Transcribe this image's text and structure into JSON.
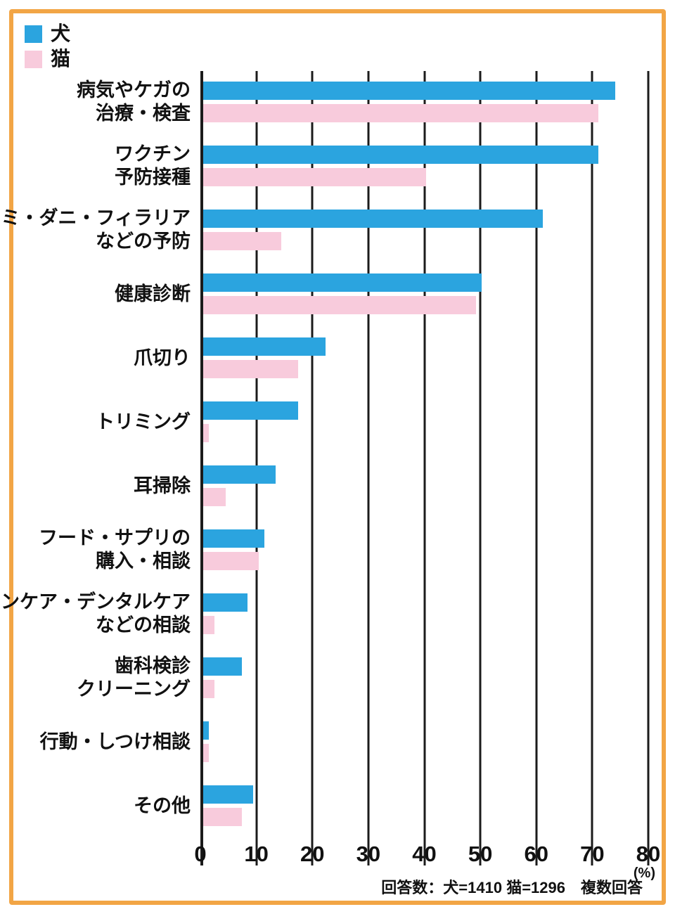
{
  "accent_border_color": "#f2a545",
  "grid_color": "#1b1b1b",
  "chart_data": {
    "type": "bar",
    "orientation": "horizontal",
    "title": "",
    "xlabel": "",
    "ylabel": "",
    "xlim": [
      0,
      80
    ],
    "ticks": [
      0,
      10,
      20,
      30,
      40,
      50,
      60,
      70,
      80
    ],
    "unit_label": "(%)",
    "grid": true,
    "legend_position": "top-left",
    "categories": [
      {
        "key": "illness-injury-treatment",
        "lines": [
          "病気やケガの",
          "治療・検査"
        ]
      },
      {
        "key": "vaccine",
        "lines": [
          "ワクチン",
          "予防接種"
        ]
      },
      {
        "key": "flea-tick-filaria",
        "lines": [
          "ノミ・ダニ・フィラリア",
          "などの予防"
        ]
      },
      {
        "key": "health-checkup",
        "lines": [
          "健康診断"
        ]
      },
      {
        "key": "nail-trimming",
        "lines": [
          "爪切り"
        ]
      },
      {
        "key": "trimming",
        "lines": [
          "トリミング"
        ]
      },
      {
        "key": "ear-cleaning",
        "lines": [
          "耳掃除"
        ]
      },
      {
        "key": "food-supplement",
        "lines": [
          "フード・サプリの",
          "購入・相談"
        ]
      },
      {
        "key": "skincare-dentalcare",
        "lines": [
          "スキンケア・デンタルケア",
          "などの相談"
        ]
      },
      {
        "key": "dental-checkup",
        "lines": [
          "歯科検診",
          "クリーニング"
        ]
      },
      {
        "key": "behavior-training",
        "lines": [
          "行動・しつけ相談"
        ]
      },
      {
        "key": "other",
        "lines": [
          "その他"
        ]
      }
    ],
    "series": [
      {
        "key": "dog",
        "name": "犬",
        "color": "#2ba4df",
        "values": [
          74,
          71,
          61,
          50,
          22,
          17,
          13,
          11,
          8,
          7,
          1,
          9
        ]
      },
      {
        "key": "cat",
        "name": "猫",
        "color": "#f8cbdc",
        "values": [
          71,
          40,
          14,
          49,
          17,
          1,
          4,
          10,
          2,
          2,
          1,
          7
        ]
      }
    ],
    "footnote": "回答数：犬=1410 猫=1296　複数回答"
  }
}
